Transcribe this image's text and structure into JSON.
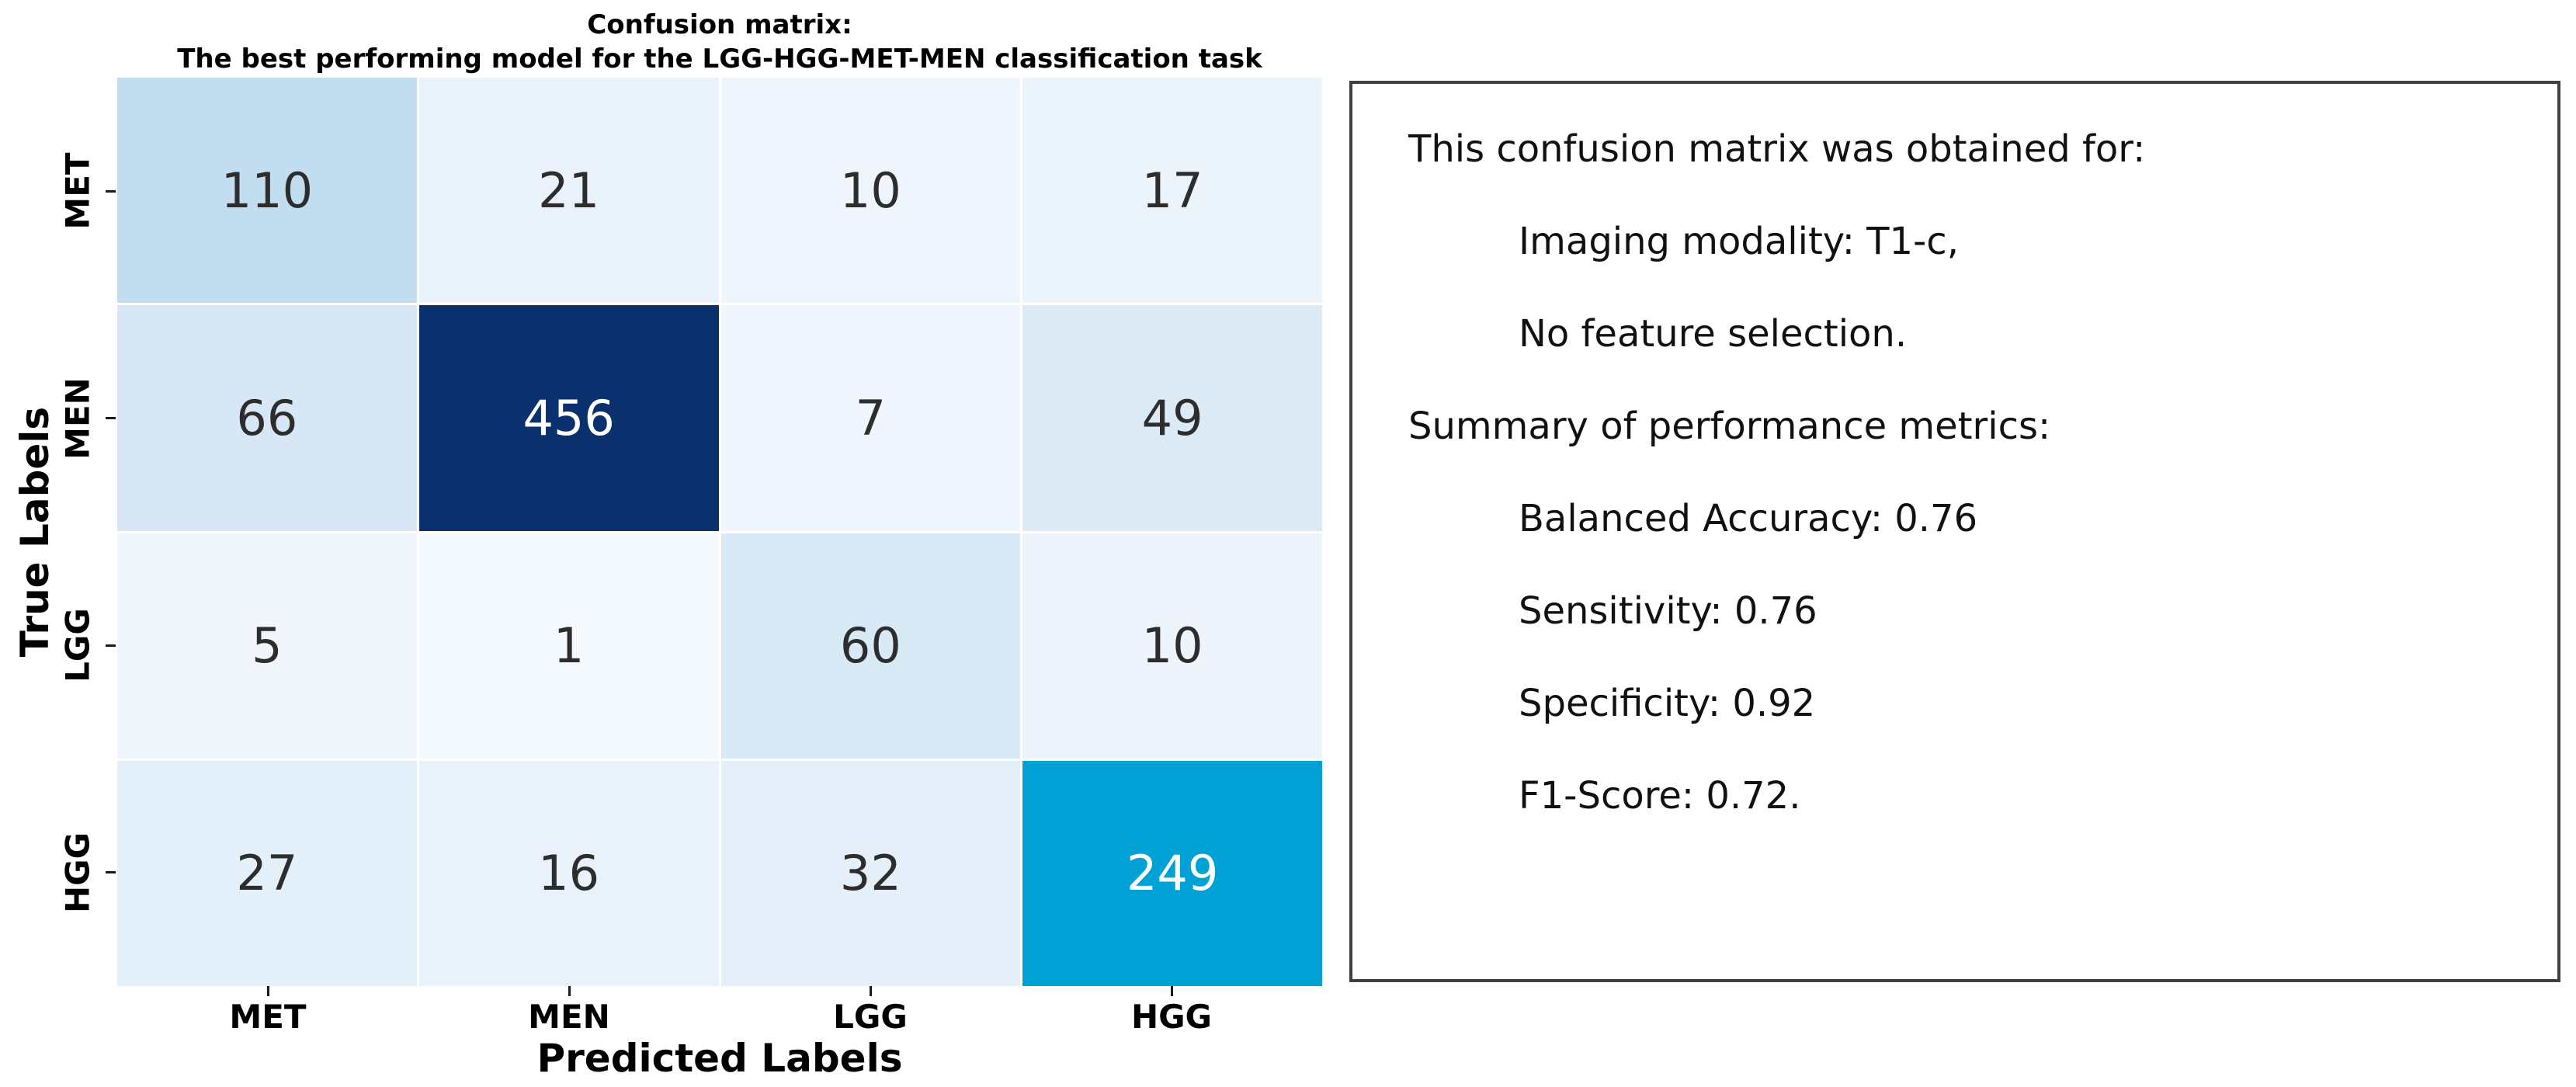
{
  "figure": {
    "title_line1": "Confusion matrix:",
    "title_line2": "The best performing model for the LGG-HGG-MET-MEN classification task"
  },
  "chart_data": {
    "type": "heatmap",
    "title": "Confusion matrix: The best performing model for the LGG-HGG-MET-MEN classification task",
    "xlabel": "Predicted Labels",
    "ylabel": "True Labels",
    "x_categories": [
      "MET",
      "MEN",
      "LGG",
      "HGG"
    ],
    "y_categories": [
      "MET",
      "MEN",
      "LGG",
      "HGG"
    ],
    "values": [
      [
        110,
        21,
        10,
        17
      ],
      [
        66,
        456,
        7,
        49
      ],
      [
        5,
        1,
        60,
        10
      ],
      [
        27,
        16,
        32,
        249
      ]
    ],
    "colormap": "Blues",
    "vmin": 0,
    "vmax": 456,
    "cell_colors": [
      [
        "#c2ddef",
        "#e9f2fb",
        "#eef5fc",
        "#ebf3fb"
      ],
      [
        "#d7e7f5",
        "#0a316e",
        "#f0f6fd",
        "#dceaf6"
      ],
      [
        "#f0f6fc",
        "#f4f9fe",
        "#d9eaf7",
        "#edf4fc"
      ],
      [
        "#e3eff9",
        "#e9f2fa",
        "#e4eff9",
        "#00a2d6"
      ]
    ],
    "cell_text_colors": [
      [
        "#2d2d2d",
        "#2d2d2d",
        "#2d2d2d",
        "#2d2d2d"
      ],
      [
        "#2d2d2d",
        "#ffffff",
        "#2d2d2d",
        "#2d2d2d"
      ],
      [
        "#2d2d2d",
        "#2d2d2d",
        "#2d2d2d",
        "#2d2d2d"
      ],
      [
        "#2d2d2d",
        "#2d2d2d",
        "#2d2d2d",
        "#ffffff"
      ]
    ],
    "grid": false,
    "legend": "none",
    "annotations_on": true
  },
  "annotation_panel": {
    "border_color": "#3f3f3f",
    "lines": [
      {
        "text": "This confusion matrix was obtained for:",
        "indent": false
      },
      {
        "text": "Imaging modality: T1-c,",
        "indent": true
      },
      {
        "text": "No feature selection.",
        "indent": true
      },
      {
        "text": "Summary of performance metrics:",
        "indent": false
      },
      {
        "text": "Balanced Accuracy: 0.76",
        "indent": true
      },
      {
        "text": "Sensitivity: 0.76",
        "indent": true
      },
      {
        "text": "Specificity: 0.92",
        "indent": true
      },
      {
        "text": "F1-Score: 0.72.",
        "indent": true
      }
    ]
  },
  "colors": {
    "background": "#ffffff",
    "axis_text": "#000000",
    "tick": "#1a1a1a"
  }
}
